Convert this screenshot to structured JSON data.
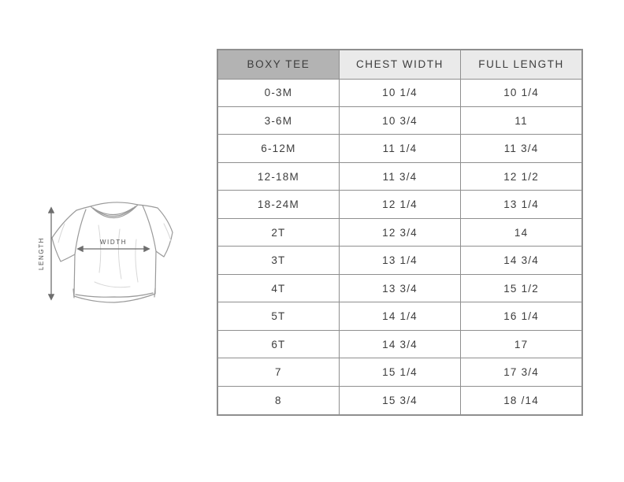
{
  "page": {
    "background": "#ffffff"
  },
  "diagram": {
    "width_label": "WIDTH",
    "length_label": "LENGTH"
  },
  "chart_data": {
    "type": "table",
    "columns": [
      "BOXY TEE",
      "CHEST WIDTH",
      "FULL LENGTH"
    ],
    "rows": [
      {
        "size": "0-3M",
        "chest_width": "10 1/4",
        "full_length": "10 1/4"
      },
      {
        "size": "3-6M",
        "chest_width": "10 3/4",
        "full_length": "11"
      },
      {
        "size": "6-12M",
        "chest_width": "11 1/4",
        "full_length": "11 3/4"
      },
      {
        "size": "12-18M",
        "chest_width": "11 3/4",
        "full_length": "12 1/2"
      },
      {
        "size": "18-24M",
        "chest_width": "12 1/4",
        "full_length": "13 1/4"
      },
      {
        "size": "2T",
        "chest_width": "12 3/4",
        "full_length": "14"
      },
      {
        "size": "3T",
        "chest_width": "13 1/4",
        "full_length": "14 3/4"
      },
      {
        "size": "4T",
        "chest_width": "13 3/4",
        "full_length": "15 1/2"
      },
      {
        "size": "5T",
        "chest_width": "14 1/4",
        "full_length": "16 1/4"
      },
      {
        "size": "6T",
        "chest_width": "14 3/4",
        "full_length": "17"
      },
      {
        "size": "7",
        "chest_width": "15 1/4",
        "full_length": "17 3/4"
      },
      {
        "size": "8",
        "chest_width": "15 3/4",
        "full_length": "18 /14"
      }
    ]
  },
  "colors": {
    "header_primary_bg": "#b3b3b3",
    "header_secondary_bg": "#eaeaea",
    "table_border": "#8f8f8f",
    "text": "#3d3d3d",
    "arrow": "#6e6e6e",
    "sketch_outline": "#9a9a9a"
  }
}
